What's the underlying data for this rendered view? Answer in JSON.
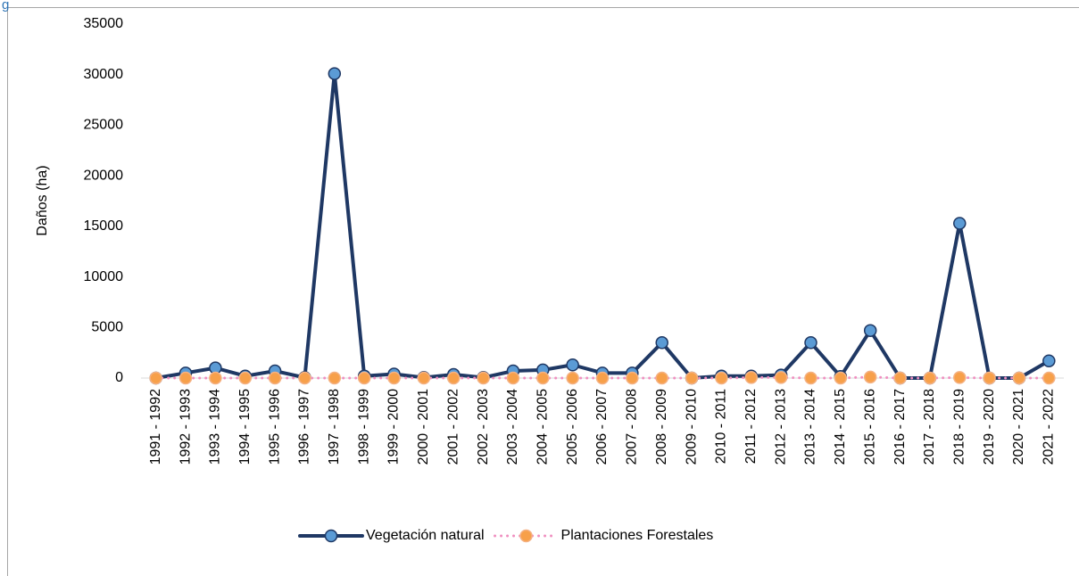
{
  "chart_data": {
    "type": "line",
    "caption": "g",
    "y_label": "Daños (ha)",
    "categories": [
      "1991 - 1992",
      "1992 - 1993",
      "1993 - 1994",
      "1994 - 1995",
      "1995 - 1996",
      "1996 - 1997",
      "1997 - 1998",
      "1998 - 1999",
      "1999 - 2000",
      "2000 - 2001",
      "2001 - 2002",
      "2002 - 2003",
      "2003 - 2004",
      "2004 - 2005",
      "2005 - 2006",
      "2006 - 2007",
      "2007 - 2008",
      "2008 - 2009",
      "2009 - 2010",
      "2010 - 2011",
      "2011 - 2012",
      "2012 - 2013",
      "2013 - 2014",
      "2014 - 2015",
      "2015 - 2016",
      "2016 - 2017",
      "2017 - 2018",
      "2018 - 2019",
      "2019 - 2020",
      "2020 - 2021",
      "2021 - 2022"
    ],
    "series": [
      {
        "name": "Vegetación natural",
        "color": "#1f3864",
        "marker_color": "#5b9bd5",
        "line_style": "solid",
        "values": [
          0,
          500,
          1000,
          200,
          700,
          50,
          30100,
          200,
          400,
          50,
          350,
          50,
          700,
          800,
          1300,
          500,
          500,
          3500,
          0,
          200,
          200,
          300,
          3500,
          150,
          4700,
          0,
          0,
          15300,
          0,
          0,
          1700
        ]
      },
      {
        "name": "Plantaciones Forestales",
        "color": "#f08fc0",
        "marker_color": "#f7a04a",
        "line_style": "dotted",
        "values": [
          0,
          0,
          0,
          0,
          0,
          0,
          0,
          0,
          0,
          0,
          0,
          0,
          0,
          0,
          0,
          0,
          0,
          0,
          0,
          0,
          50,
          50,
          0,
          0,
          100,
          0,
          0,
          50,
          0,
          0,
          0
        ]
      }
    ],
    "ylim": [
      0,
      35000
    ],
    "yticks": [
      0,
      5000,
      10000,
      15000,
      20000,
      25000,
      30000,
      35000
    ],
    "grid": false,
    "legend": "bottom"
  }
}
